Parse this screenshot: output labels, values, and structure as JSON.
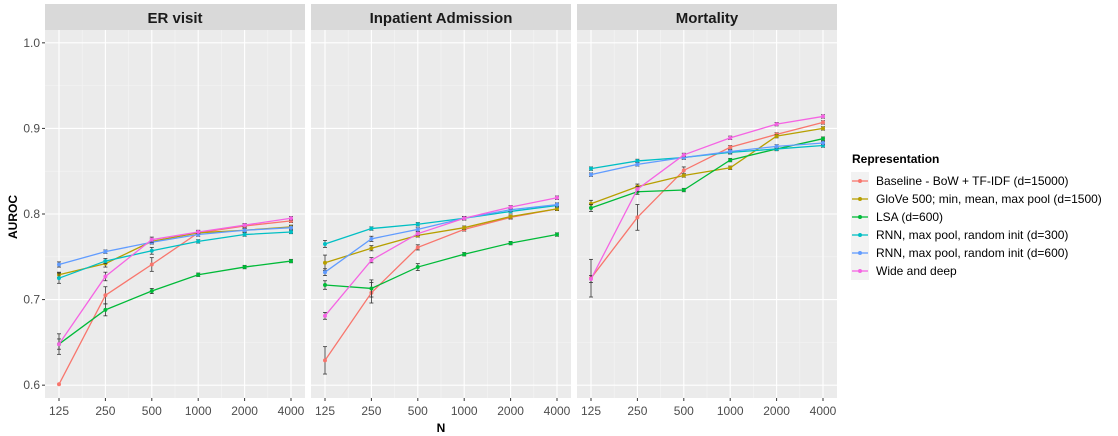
{
  "chart_data": {
    "type": "line",
    "xlabel": "N",
    "ylabel": "AUROC",
    "x": [
      125,
      250,
      500,
      1000,
      2000,
      4000
    ],
    "x_tick_labels": [
      "125",
      "250",
      "500",
      "1000",
      "2000",
      "4000"
    ],
    "x_scale": "log2",
    "ylim": [
      0.585,
      1.015
    ],
    "y_ticks": [
      "0.6",
      "0.7",
      "0.8",
      "0.9",
      "1.0"
    ],
    "y_tick_values": [
      0.6,
      0.7,
      0.8,
      0.9,
      1.0
    ],
    "grid": true,
    "legend_placement": "right",
    "legend_title": "Representation",
    "panels": [
      {
        "title": "ER visit",
        "series": [
          {
            "name": "Baseline - BoW + TF-IDF (d=15000)",
            "color": "#F8766D",
            "values": [
              0.601,
              0.705,
              0.741,
              0.778,
              0.786,
              0.792
            ],
            "err": [
              0.0,
              0.01,
              0.008,
              0.002,
              0.002,
              0.002
            ]
          },
          {
            "name": "GloVe 500; min, mean, max pool (d=1500)",
            "color": "#B79F00",
            "values": [
              0.729,
              0.742,
              0.768,
              0.778,
              0.781,
              0.785
            ],
            "err": [
              0.003,
              0.004,
              0.003,
              0.002,
              0.002,
              0.002
            ]
          },
          {
            "name": "LSA (d=600)",
            "color": "#00BA38",
            "values": [
              0.648,
              0.688,
              0.71,
              0.729,
              0.738,
              0.745
            ],
            "err": [
              0.012,
              0.007,
              0.003,
              0.002,
              0.002,
              0.002
            ]
          },
          {
            "name": "RNN, max pool, random init (d=300)",
            "color": "#00BFC4",
            "values": [
              0.725,
              0.745,
              0.757,
              0.768,
              0.776,
              0.779
            ],
            "err": [
              0.006,
              0.003,
              0.004,
              0.002,
              0.002,
              0.002
            ]
          },
          {
            "name": "RNN, max pool, random init (d=600)",
            "color": "#619CFF",
            "values": [
              0.741,
              0.756,
              0.767,
              0.776,
              0.781,
              0.784
            ],
            "err": [
              0.003,
              0.002,
              0.002,
              0.002,
              0.002,
              0.002
            ]
          },
          {
            "name": "Wide and deep",
            "color": "#F564E3",
            "values": [
              0.648,
              0.727,
              0.77,
              0.779,
              0.787,
              0.795
            ],
            "err": [
              0.006,
              0.005,
              0.003,
              0.002,
              0.002,
              0.002
            ]
          }
        ]
      },
      {
        "title": "Inpatient Admission",
        "series": [
          {
            "name": "Baseline - BoW + TF-IDF (d=15000)",
            "color": "#F8766D",
            "values": [
              0.629,
              0.708,
              0.761,
              0.782,
              0.796,
              0.806
            ],
            "err": [
              0.016,
              0.012,
              0.003,
              0.002,
              0.002,
              0.002
            ]
          },
          {
            "name": "GloVe 500; min, mean, max pool (d=1500)",
            "color": "#B79F00",
            "values": [
              0.743,
              0.76,
              0.775,
              0.784,
              0.797,
              0.806
            ],
            "err": [
              0.009,
              0.003,
              0.002,
              0.002,
              0.002,
              0.002
            ]
          },
          {
            "name": "LSA (d=600)",
            "color": "#00BA38",
            "values": [
              0.717,
              0.713,
              0.738,
              0.753,
              0.766,
              0.776
            ],
            "err": [
              0.005,
              0.01,
              0.004,
              0.002,
              0.002,
              0.002
            ]
          },
          {
            "name": "RNN, max pool, random init (d=300)",
            "color": "#00BFC4",
            "values": [
              0.765,
              0.783,
              0.788,
              0.795,
              0.803,
              0.81
            ],
            "err": [
              0.004,
              0.002,
              0.002,
              0.002,
              0.002,
              0.002
            ]
          },
          {
            "name": "RNN, max pool, random init (d=600)",
            "color": "#619CFF",
            "values": [
              0.732,
              0.771,
              0.782,
              0.795,
              0.805,
              0.811
            ],
            "err": [
              0.004,
              0.003,
              0.002,
              0.002,
              0.002,
              0.002
            ]
          },
          {
            "name": "Wide and deep",
            "color": "#F564E3",
            "values": [
              0.681,
              0.746,
              0.777,
              0.795,
              0.808,
              0.819
            ],
            "err": [
              0.004,
              0.003,
              0.002,
              0.002,
              0.002,
              0.002
            ]
          }
        ]
      },
      {
        "title": "Mortality",
        "series": [
          {
            "name": "Baseline - BoW + TF-IDF (d=15000)",
            "color": "#F8766D",
            "values": [
              0.725,
              0.796,
              0.851,
              0.878,
              0.893,
              0.907
            ],
            "err": [
              0.022,
              0.015,
              0.004,
              0.002,
              0.002,
              0.002
            ]
          },
          {
            "name": "GloVe 500; min, mean, max pool (d=1500)",
            "color": "#B79F00",
            "values": [
              0.812,
              0.832,
              0.845,
              0.854,
              0.891,
              0.9
            ],
            "err": [
              0.004,
              0.003,
              0.002,
              0.002,
              0.002,
              0.002
            ]
          },
          {
            "name": "LSA (d=600)",
            "color": "#00BA38",
            "values": [
              0.807,
              0.826,
              0.828,
              0.863,
              0.876,
              0.888
            ],
            "err": [
              0.004,
              0.003,
              0.002,
              0.002,
              0.002,
              0.002
            ]
          },
          {
            "name": "RNN, max pool, random init (d=300)",
            "color": "#00BFC4",
            "values": [
              0.853,
              0.862,
              0.866,
              0.872,
              0.876,
              0.88
            ],
            "err": [
              0.002,
              0.002,
              0.002,
              0.002,
              0.002,
              0.002
            ]
          },
          {
            "name": "RNN, max pool, random init (d=600)",
            "color": "#619CFF",
            "values": [
              0.846,
              0.858,
              0.866,
              0.873,
              0.879,
              0.883
            ],
            "err": [
              0.002,
              0.002,
              0.002,
              0.002,
              0.002,
              0.002
            ]
          },
          {
            "name": "Wide and deep",
            "color": "#F564E3",
            "values": [
              0.724,
              0.829,
              0.869,
              0.889,
              0.905,
              0.914
            ],
            "err": [
              0.004,
              0.003,
              0.002,
              0.002,
              0.002,
              0.002
            ]
          }
        ]
      }
    ]
  }
}
